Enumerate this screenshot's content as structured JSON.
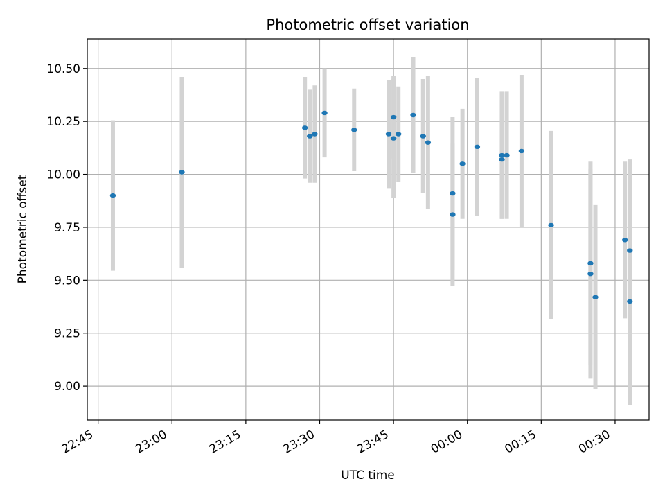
{
  "chart_data": {
    "type": "scatter",
    "title": "Photometric offset variation",
    "xlabel": "UTC time",
    "ylabel": "Photometric offset",
    "x_axis": {
      "ticks": [
        "22:45",
        "23:00",
        "23:15",
        "23:30",
        "23:45",
        "00:00",
        "00:15",
        "00:30"
      ],
      "tick_minutes": [
        0,
        15,
        30,
        45,
        60,
        75,
        90,
        105
      ],
      "range_minutes": [
        -2.2,
        111.9
      ]
    },
    "y_axis": {
      "ticks": [
        "9.00",
        "9.25",
        "9.50",
        "9.75",
        "10.00",
        "10.25",
        "10.50"
      ],
      "tick_values": [
        9.0,
        9.25,
        9.5,
        9.75,
        10.0,
        10.25,
        10.5
      ],
      "range": [
        8.84,
        10.64
      ]
    },
    "grid": true,
    "colors": {
      "point": "#1f77b4",
      "errorbar": "#d3d3d3",
      "grid": "#b0b0b0"
    },
    "points": [
      {
        "t": "22:48",
        "y": 9.9,
        "err": 0.355
      },
      {
        "t": "23:02",
        "y": 10.01,
        "err": 0.45
      },
      {
        "t": "23:27",
        "y": 10.22,
        "err": 0.24
      },
      {
        "t": "23:28",
        "y": 10.18,
        "err": 0.22
      },
      {
        "t": "23:29",
        "y": 10.19,
        "err": 0.23
      },
      {
        "t": "23:31",
        "y": 10.29,
        "err": 0.21
      },
      {
        "t": "23:37",
        "y": 10.21,
        "err": 0.195
      },
      {
        "t": "23:44",
        "y": 10.19,
        "err": 0.255
      },
      {
        "t": "23:45",
        "y": 10.27,
        "err": 0.195
      },
      {
        "t": "23:45",
        "y": 10.17,
        "err": 0.28
      },
      {
        "t": "23:46",
        "y": 10.19,
        "err": 0.225
      },
      {
        "t": "23:49",
        "y": 10.28,
        "err": 0.275
      },
      {
        "t": "23:51",
        "y": 10.18,
        "err": 0.27
      },
      {
        "t": "23:52",
        "y": 10.15,
        "err": 0.315
      },
      {
        "t": "23:57",
        "y": 9.81,
        "err": 0.335
      },
      {
        "t": "23:57",
        "y": 9.91,
        "err": 0.36
      },
      {
        "t": "23:59",
        "y": 10.05,
        "err": 0.26
      },
      {
        "t": "00:02",
        "y": 10.13,
        "err": 0.325
      },
      {
        "t": "00:07",
        "y": 10.09,
        "err": 0.3
      },
      {
        "t": "00:07",
        "y": 10.07,
        "err": 0.28
      },
      {
        "t": "00:08",
        "y": 10.09,
        "err": 0.3
      },
      {
        "t": "00:11",
        "y": 10.11,
        "err": 0.36
      },
      {
        "t": "00:17",
        "y": 9.76,
        "err": 0.445
      },
      {
        "t": "00:25",
        "y": 9.58,
        "err": 0.48
      },
      {
        "t": "00:25",
        "y": 9.53,
        "err": 0.495
      },
      {
        "t": "00:26",
        "y": 9.42,
        "err": 0.435
      },
      {
        "t": "00:32",
        "y": 9.69,
        "err": 0.37
      },
      {
        "t": "00:33",
        "y": 9.64,
        "err": 0.43
      },
      {
        "t": "00:33",
        "y": 9.4,
        "err": 0.49
      }
    ]
  }
}
